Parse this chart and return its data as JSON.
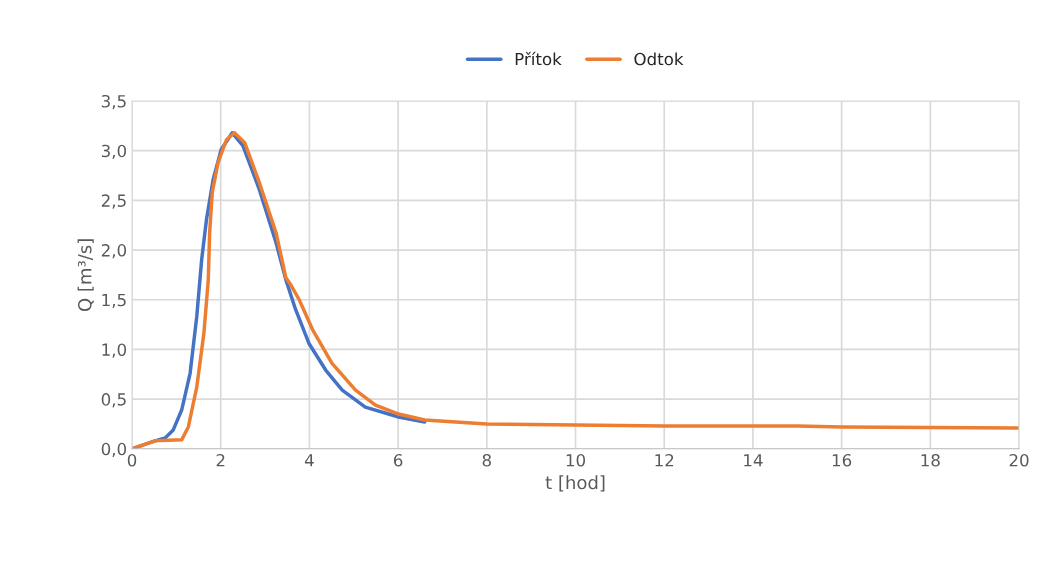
{
  "chart_data": {
    "type": "line",
    "xlabel": "t [hod]",
    "ylabel": "Q [m³/s]",
    "xlim": [
      0,
      20
    ],
    "xticks": [
      0,
      2,
      4,
      6,
      8,
      10,
      12,
      14,
      16,
      18,
      20
    ],
    "ylim": [
      0,
      3.5
    ],
    "yticks": [
      {
        "value": 0,
        "label": "0,0"
      },
      {
        "value": 0.5,
        "label": "0,5"
      },
      {
        "value": 1,
        "label": "1,0"
      },
      {
        "value": 1.5,
        "label": "1,5"
      },
      {
        "value": 2,
        "label": "2,0"
      },
      {
        "value": 2.5,
        "label": "2,5"
      },
      {
        "value": 3,
        "label": "3,0"
      },
      {
        "value": 3.5,
        "label": "3,5"
      }
    ],
    "grid": true,
    "legend": "top",
    "marker": "none",
    "line_style": "solid",
    "series": [
      {
        "name": "Přítok",
        "color": "#4472c4",
        "x": [
          0,
          0.52,
          0.75,
          0.93,
          1.12,
          1.31,
          1.46,
          1.57,
          1.68,
          1.83,
          2.01,
          2.26,
          2.5,
          2.87,
          3.25,
          3.47,
          3.69,
          3.99,
          4.37,
          4.74,
          5.26,
          6.01,
          6.6
        ],
        "values": [
          0,
          0.08,
          0.11,
          0.19,
          0.39,
          0.76,
          1.33,
          1.9,
          2.31,
          2.71,
          3.01,
          3.18,
          3.05,
          2.61,
          2.07,
          1.7,
          1.4,
          1.06,
          0.79,
          0.59,
          0.42,
          0.32,
          0.27
        ]
      },
      {
        "name": "Odtok",
        "color": "#ed7d31",
        "x": [
          0,
          0.52,
          1.12,
          1.27,
          1.46,
          1.62,
          1.72,
          1.75,
          1.81,
          1.94,
          2.13,
          2.31,
          2.54,
          2.87,
          3.25,
          3.47,
          3.58,
          3.77,
          4.07,
          4.51,
          5.04,
          5.49,
          6.01,
          6.6,
          8,
          10,
          12,
          15,
          16,
          20
        ],
        "values": [
          0,
          0.08,
          0.09,
          0.22,
          0.62,
          1.16,
          1.7,
          2.17,
          2.58,
          2.88,
          3.11,
          3.18,
          3.08,
          2.68,
          2.17,
          1.72,
          1.65,
          1.5,
          1.2,
          0.86,
          0.59,
          0.44,
          0.35,
          0.29,
          0.25,
          0.24,
          0.23,
          0.23,
          0.22,
          0.21
        ]
      }
    ]
  }
}
